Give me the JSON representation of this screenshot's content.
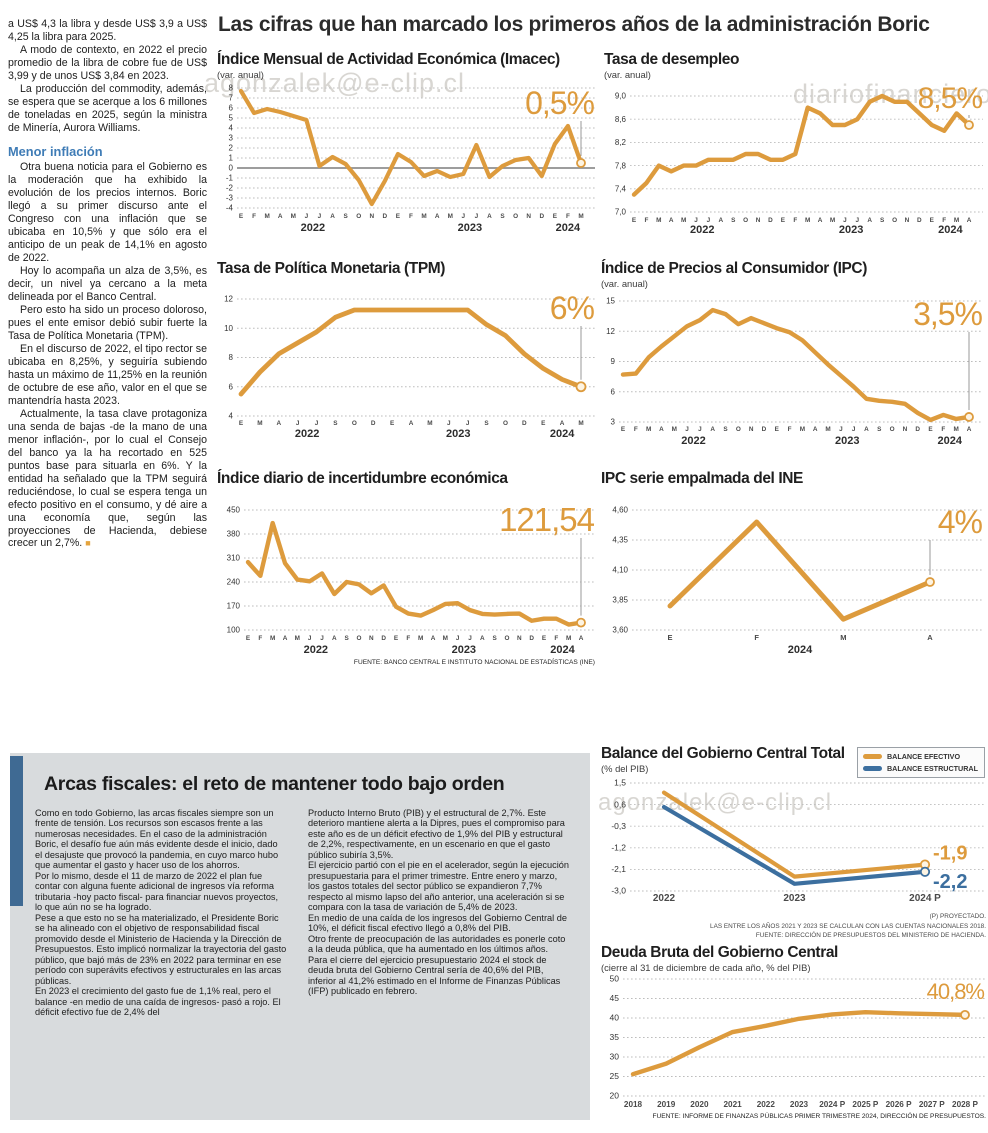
{
  "page": {
    "main_title": "Las cifras que han marcado los primeros años de la administración Boric"
  },
  "colors": {
    "orange": "#dd9b3d",
    "blue": "#3c6f9f",
    "heading_blue": "#3f7cb6",
    "panel_bar_blue": "#3f6a93",
    "panel_bg": "#d8dbdd"
  },
  "watermarks": {
    "w1": "agonzalek@e-clip.cl",
    "w2": "diariofinanciero",
    "w3": "agonzalek@e-clip.cl"
  },
  "left_article": {
    "paragraphs_top": [
      "a US$ 4,3 la libra y desde US$ 3,9 a US$ 4,25 la libra para 2025.",
      "A modo de contexto, en 2022 el precio promedio de la libra de cobre fue de US$ 3,99 y de unos US$ 3,84 en 2023.",
      "La producción del commodity, además, se espera que se acerque a los 6 millones de toneladas en 2025, según la ministra de Minería, Aurora Williams."
    ],
    "subheading": "Menor inflación",
    "paragraphs_bottom": [
      "Otra buena noticia para el Gobierno es la moderación que ha exhibido la evolución de los precios internos. Boric llegó a su primer discurso ante el Congreso con una inflación que se ubicaba en 10,5% y que sólo era el anticipo de un peak de 14,1% en agosto de 2022.",
      "Hoy lo acompaña un alza de 3,5%, es decir, un nivel ya cercano a la meta delineada por el Banco Central.",
      "Pero esto ha sido un proceso doloroso, pues el ente emisor debió subir fuerte la Tasa de Política Monetaria (TPM).",
      "En el discurso de 2022, el tipo rector se ubicaba en 8,25%, y seguiría subiendo hasta un máximo de 11,25% en la reunión de octubre de ese año, valor en el que se mantendría hasta 2023.",
      "Actualmente, la tasa clave protagoniza una senda de bajas -de la mano de una menor inflación-, por lo cual el Consejo del banco ya la ha recortado en 525 puntos base para situarla en 6%. Y la entidad ha señalado que la TPM seguirá reduciéndose, lo cual se espera tenga un efecto positivo en el consumo, y dé aire a una economía que, según las proyecciones de Hacienda, debiese crecer un 2,7%."
    ],
    "end_mark": "■"
  },
  "fiscal_section": {
    "title": "Arcas fiscales: el reto de mantener todo bajo orden",
    "col1": [
      "Como en todo Gobierno, las arcas fiscales siempre son un frente de tensión. Los recursos son escasos frente a las numerosas necesidades. En el caso de la administración Boric, el desafío fue aún más evidente desde el inicio, dado el desajuste que provocó la pandemia, en cuyo marco hubo que aumentar el gasto y hacer uso de los ahorros.",
      "Por lo mismo, desde el 11 de marzo de 2022 el plan fue contar con alguna fuente adicional de ingresos vía reforma tributaria -hoy pacto fiscal- para financiar nuevos proyectos, lo que aún no se ha logrado.",
      "Pese a que esto no se ha materializado, el Presidente Boric se ha alineado con el objetivo de responsabilidad fiscal promovido desde el Ministerio de Hacienda y la Dirección de Presupuestos. Esto implicó normalizar la trayectoria del gasto público, que bajó más de 23% en 2022 para terminar en ese período con superávits efectivos y estructurales en las arcas públicas.",
      "En 2023 el crecimiento del gasto fue de 1,1% real, pero el balance -en medio de una caída de ingresos- pasó a rojo. El déficit efectivo fue de 2,4% del"
    ],
    "col2": [
      "Producto Interno Bruto (PIB) y el estructural de 2,7%. Este deterioro mantiene alerta a la Dipres, pues el compromiso para este año es de un déficit efectivo de 1,9% del PIB y estructural de 2,2%, respectivamente, en un escenario en que el gasto público subiría 3,5%.",
      "El ejercicio partió con el pie en el acelerador, según la ejecución presupuestaria para el primer trimestre. Entre enero y marzo, los gastos totales del sector público se expandieron 7,7% respecto al mismo lapso del año anterior, una aceleración si se compara con la tasa de variación de 5,4% de 2023.",
      "En medio de una caída de los ingresos del Gobierno Central de 10%, el déficit fiscal efectivo llegó a 0,8% del PIB.",
      "Otro frente de preocupación de las autoridades es ponerle coto a la deuda pública, que ha aumentado en los últimos años.",
      "Para el cierre del ejercicio presupuestario 2024 el stock de deuda bruta del Gobierno Central sería de 40,6% del PIB, inferior al 41,2% estimado en el Informe de Finanzas Públicas (IFP) publicado en febrero."
    ]
  },
  "chart_data": [
    {
      "id": "imacec",
      "type": "line",
      "title": "Índice Mensual de Actividad Económica (Imacec)",
      "subtitle": "(var. anual)",
      "big_label": "0,5%",
      "x": [
        "E",
        "F",
        "M",
        "A",
        "M",
        "J",
        "J",
        "A",
        "S",
        "O",
        "N",
        "D",
        "E",
        "F",
        "M",
        "A",
        "M",
        "J",
        "J",
        "A",
        "S",
        "O",
        "N",
        "D",
        "E",
        "F",
        "M"
      ],
      "year_spans": [
        {
          "label": "2022",
          "from": 0,
          "to": 11
        },
        {
          "label": "2023",
          "from": 12,
          "to": 23
        },
        {
          "label": "2024",
          "from": 24,
          "to": 26
        }
      ],
      "values": [
        7.7,
        5.5,
        5.9,
        5.6,
        5.2,
        4.8,
        0.2,
        1.1,
        0.4,
        -1.2,
        -3.6,
        -1.3,
        1.4,
        0.6,
        -0.8,
        -0.3,
        -0.9,
        -0.6,
        2.3,
        -0.9,
        0.2,
        0.8,
        1.0,
        -0.8,
        2.4,
        4.2,
        0.5
      ],
      "yticks": [
        8,
        7,
        6,
        5,
        4,
        3,
        2,
        1,
        0,
        -1,
        -2,
        -3,
        -4
      ],
      "ytick_labels": [
        "8",
        "7",
        "6",
        "5",
        "4",
        "3",
        "2",
        "1",
        "0",
        "-1",
        "-2",
        "-3",
        "-4"
      ],
      "ylim": [
        -4,
        8
      ],
      "zero_line": true
    },
    {
      "id": "desempleo",
      "type": "line",
      "title": "Tasa de desempleo",
      "subtitle": "(var. anual)",
      "big_label": "8,5%",
      "x": [
        "E",
        "F",
        "M",
        "A",
        "M",
        "J",
        "J",
        "A",
        "S",
        "O",
        "N",
        "D",
        "E",
        "F",
        "M",
        "A",
        "M",
        "J",
        "J",
        "A",
        "S",
        "O",
        "N",
        "D",
        "E",
        "F",
        "M",
        "A"
      ],
      "year_spans": [
        {
          "label": "2022",
          "from": 0,
          "to": 11
        },
        {
          "label": "2023",
          "from": 12,
          "to": 23
        },
        {
          "label": "2024",
          "from": 24,
          "to": 27
        }
      ],
      "values": [
        7.3,
        7.5,
        7.8,
        7.7,
        7.8,
        7.8,
        7.9,
        7.9,
        7.9,
        8.0,
        8.0,
        7.9,
        7.9,
        8.0,
        8.8,
        8.7,
        8.5,
        8.5,
        8.6,
        8.9,
        9.0,
        8.9,
        8.9,
        8.7,
        8.5,
        8.4,
        8.7,
        8.5
      ],
      "yticks": [
        9.0,
        8.6,
        8.2,
        7.8,
        7.4,
        7.0
      ],
      "ytick_labels": [
        "9,0",
        "8,6",
        "8,2",
        "7,8",
        "7,4",
        "7,0"
      ],
      "ylim": [
        7.0,
        9.0
      ]
    },
    {
      "id": "tpm",
      "type": "line",
      "title": "Tasa de Política Monetaria (TPM)",
      "big_label": "6%",
      "x": [
        "E",
        "M",
        "A",
        "J",
        "J",
        "S",
        "O",
        "D",
        "E",
        "A",
        "M",
        "J",
        "J",
        "S",
        "O",
        "D",
        "E",
        "A",
        "M"
      ],
      "year_spans": [
        {
          "label": "2022",
          "from": 0,
          "to": 7
        },
        {
          "label": "2023",
          "from": 8,
          "to": 15
        },
        {
          "label": "2024",
          "from": 16,
          "to": 18
        }
      ],
      "values": [
        5.5,
        7.0,
        8.25,
        9.0,
        9.75,
        10.75,
        11.25,
        11.25,
        11.25,
        11.25,
        11.25,
        11.25,
        11.25,
        10.25,
        9.5,
        8.25,
        7.25,
        6.5,
        6.0
      ],
      "yticks": [
        12,
        10,
        8,
        6,
        4
      ],
      "ytick_labels": [
        "12",
        "10",
        "8",
        "6",
        "4"
      ],
      "ylim": [
        4,
        12
      ]
    },
    {
      "id": "ipc",
      "type": "line",
      "title": "Índice de Precios al Consumidor (IPC)",
      "subtitle": "(var. anual)",
      "big_label": "3,5%",
      "x": [
        "E",
        "F",
        "M",
        "A",
        "M",
        "J",
        "J",
        "A",
        "S",
        "O",
        "N",
        "D",
        "E",
        "F",
        "M",
        "A",
        "M",
        "J",
        "J",
        "A",
        "S",
        "O",
        "N",
        "D",
        "E",
        "F",
        "M",
        "A"
      ],
      "year_spans": [
        {
          "label": "2022",
          "from": 0,
          "to": 11
        },
        {
          "label": "2023",
          "from": 12,
          "to": 23
        },
        {
          "label": "2024",
          "from": 24,
          "to": 27
        }
      ],
      "values": [
        7.7,
        7.8,
        9.4,
        10.5,
        11.5,
        12.5,
        13.1,
        14.1,
        13.7,
        12.7,
        13.3,
        12.8,
        12.3,
        11.9,
        11.1,
        9.9,
        8.7,
        7.6,
        6.5,
        5.3,
        5.1,
        5.0,
        4.8,
        3.9,
        3.2,
        3.7,
        3.3,
        3.5
      ],
      "yticks": [
        15,
        12,
        9,
        6,
        3
      ],
      "ytick_labels": [
        "15",
        "12",
        "9",
        "6",
        "3"
      ],
      "ylim": [
        3,
        15
      ]
    },
    {
      "id": "incertidumbre",
      "type": "line",
      "title": "Índice diario de incertidumbre económica",
      "big_label": "121,54",
      "x": [
        "E",
        "F",
        "M",
        "A",
        "M",
        "J",
        "J",
        "A",
        "S",
        "O",
        "N",
        "D",
        "E",
        "F",
        "M",
        "A",
        "M",
        "J",
        "J",
        "A",
        "S",
        "O",
        "N",
        "D",
        "E",
        "F",
        "M",
        "A"
      ],
      "year_spans": [
        {
          "label": "2022",
          "from": 0,
          "to": 11
        },
        {
          "label": "2023",
          "from": 12,
          "to": 23
        },
        {
          "label": "2024",
          "from": 24,
          "to": 27
        }
      ],
      "values": [
        298,
        258,
        412,
        295,
        247,
        242,
        265,
        205,
        240,
        233,
        207,
        230,
        168,
        148,
        142,
        158,
        176,
        178,
        158,
        147,
        145,
        147,
        148,
        127,
        133,
        133,
        116,
        121.54
      ],
      "yticks": [
        450,
        380,
        310,
        240,
        170,
        100
      ],
      "ytick_labels": [
        "450",
        "380",
        "310",
        "240",
        "170",
        "100"
      ],
      "ylim": [
        100,
        450
      ],
      "source": "FUENTE: BANCO CENTRAL E INSTITUTO NACIONAL DE ESTADÍSTICAS (INE)"
    },
    {
      "id": "empalmada",
      "type": "line",
      "title": "IPC serie empalmada del INE",
      "big_label": "4%",
      "x": [
        "E",
        "F",
        "M",
        "A"
      ],
      "year_spans": [
        {
          "label": "2024",
          "from": 0,
          "to": 3
        }
      ],
      "values": [
        3.8,
        4.5,
        3.69,
        4.0
      ],
      "yticks": [
        4.6,
        4.35,
        4.1,
        3.85,
        3.6
      ],
      "ytick_labels": [
        "4,60",
        "4,35",
        "4,10",
        "3,85",
        "3,60"
      ],
      "ylim": [
        3.6,
        4.6
      ]
    },
    {
      "id": "balance",
      "type": "line",
      "title": "Balance del Gobierno Central Total",
      "subtitle": "(% del PIB)",
      "x": [
        "2022",
        "2023",
        "2024 P"
      ],
      "series": [
        {
          "name": "BALANCE EFECTIVO",
          "color": "orange",
          "values": [
            1.1,
            -2.4,
            -1.9
          ],
          "end_label": "-1,9"
        },
        {
          "name": "BALANCE ESTRUCTURAL",
          "color": "blue",
          "values": [
            0.5,
            -2.7,
            -2.2
          ],
          "end_label": "-2,2"
        }
      ],
      "yticks": [
        1.5,
        0.6,
        -0.3,
        -1.2,
        -2.1,
        -3.0
      ],
      "ytick_labels": [
        "1,5",
        "0,6",
        "-0,3",
        "-1,2",
        "-2,1",
        "-3,0"
      ],
      "ylim": [
        -3.0,
        1.5
      ],
      "footnotes": [
        "(P) PROYECTADO.",
        "LAS ENTRE LOS AÑOS 2021 Y 2023 SE CALCULAN CON LAS CUENTAS NACIONALES 2018.",
        "FUENTE: DIRECCIÓN DE PRESUPUESTOS DEL MINISTERIO DE HACIENDA."
      ]
    },
    {
      "id": "deuda",
      "type": "line",
      "title": "Deuda Bruta del Gobierno Central",
      "subtitle": "(cierre al 31 de diciembre de cada año, % del PIB)",
      "big_label": "40,8%",
      "x": [
        "2018",
        "2019",
        "2020",
        "2021",
        "2022",
        "2023",
        "2024 P",
        "2025 P",
        "2026 P",
        "2027 P",
        "2028 P"
      ],
      "values": [
        25.6,
        28.3,
        32.5,
        36.4,
        38.0,
        39.8,
        40.9,
        41.5,
        41.2,
        41.0,
        40.8
      ],
      "yticks": [
        50,
        45,
        40,
        35,
        30,
        25,
        20
      ],
      "ytick_labels": [
        "50",
        "45",
        "40",
        "35",
        "30",
        "25",
        "20"
      ],
      "ylim": [
        20,
        50
      ],
      "source": "FUENTE: INFORME DE FINANZAS PÚBLICAS PRIMER TRIMESTRE 2024, DIRECCIÓN DE PRESUPUESTOS."
    }
  ]
}
